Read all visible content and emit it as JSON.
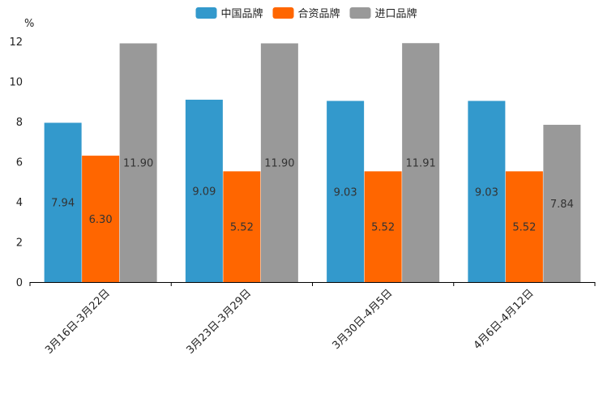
{
  "chart_data": {
    "type": "bar",
    "ylabel": "%",
    "ylim": [
      0,
      12
    ],
    "yticks": [
      0,
      2,
      4,
      6,
      8,
      10,
      12
    ],
    "categories": [
      "3月16日-3月22日",
      "3月23日-3月29日",
      "3月30日-4月5日",
      "4月6日-4月12日"
    ],
    "series": [
      {
        "name": "中国品牌",
        "color": "#3399CC",
        "values": [
          7.94,
          9.09,
          9.03,
          9.03
        ],
        "labels": [
          "7.94",
          "9.09",
          "9.03",
          "9.03"
        ]
      },
      {
        "name": "合资品牌",
        "color": "#FF6600",
        "values": [
          6.3,
          5.52,
          5.52,
          5.52
        ],
        "labels": [
          "6.30",
          "5.52",
          "5.52",
          "5.52"
        ]
      },
      {
        "name": "进口品牌",
        "color": "#999999",
        "values": [
          11.9,
          11.9,
          11.91,
          7.84
        ],
        "labels": [
          "11.90",
          "11.90",
          "11.91",
          "7.84"
        ]
      }
    ],
    "legend": "top-center",
    "grid": false
  }
}
